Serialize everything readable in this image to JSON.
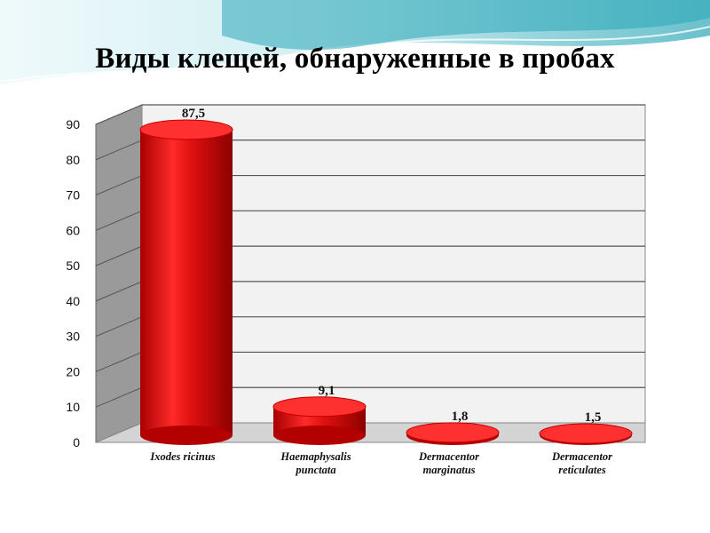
{
  "slide": {
    "title": "Виды клещей, обнаруженные в пробах",
    "colors": {
      "header_wave": "#2aa6b6",
      "header_light": "#bfe9ef",
      "bar": "#e01010",
      "bar_dark": "#a80000",
      "wall": "#f2f2f2",
      "floor": "#d4d4d4",
      "gridline": "#555555"
    }
  },
  "chart_data": {
    "type": "bar",
    "title": "",
    "xlabel": "",
    "ylabel": "",
    "categories": [
      "Ixodes ricinus",
      "Haemaphysalis punctata",
      "Dermacentor marginatus",
      "Dermacentor reticulates"
    ],
    "category_lines": [
      [
        "Ixodes ricinus"
      ],
      [
        "Haemaphysalis",
        "punctata"
      ],
      [
        "Dermacentor",
        "marginatus"
      ],
      [
        "Dermacentor",
        "reticulates"
      ]
    ],
    "values": [
      87.5,
      9.1,
      1.8,
      1.5
    ],
    "data_labels": [
      "87,5",
      "9,1",
      "1,8",
      "1,5"
    ],
    "ylim": [
      0,
      90
    ],
    "yticks": [
      0,
      10,
      20,
      30,
      40,
      50,
      60,
      70,
      80,
      90
    ],
    "grid": true,
    "legend": "none",
    "style": "3d-cylinder"
  }
}
